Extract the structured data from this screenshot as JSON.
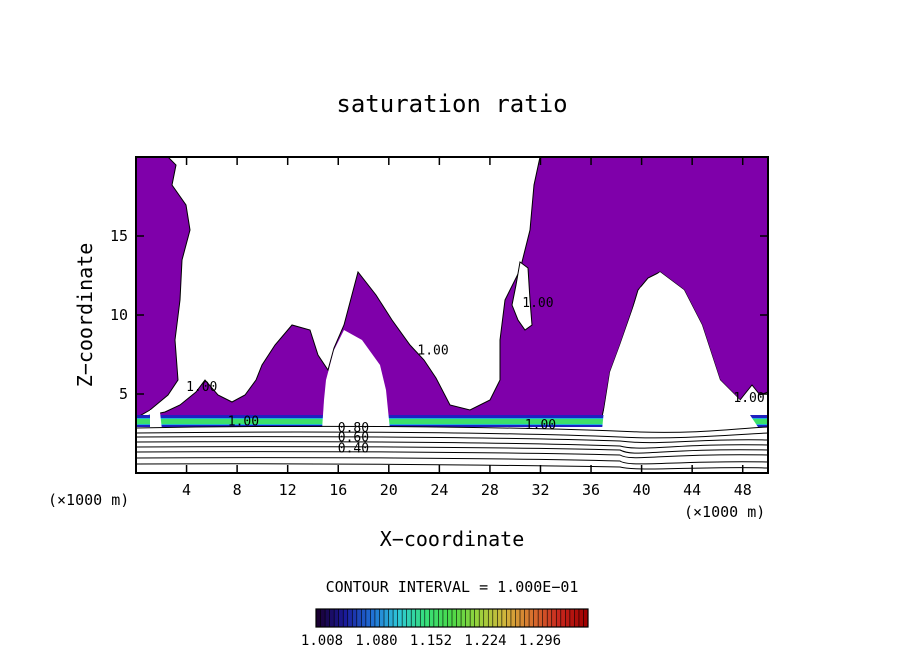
{
  "chart_data": {
    "type": "contour",
    "title": "saturation ratio",
    "xlabel": "X−coordinate",
    "ylabel": "Z−coordinate",
    "x_units_label": "(×1000 m)",
    "x_units_label_right": "(×1000 m)",
    "xlim": [
      0,
      50
    ],
    "ylim": [
      0,
      20
    ],
    "x_ticks": [
      "4",
      "8",
      "12",
      "16",
      "20",
      "24",
      "28",
      "32",
      "36",
      "40",
      "44",
      "48"
    ],
    "y_ticks": [
      "5",
      "10",
      "15"
    ],
    "x_tick_values": [
      4,
      8,
      12,
      16,
      20,
      24,
      28,
      32,
      36,
      40,
      44,
      48
    ],
    "y_tick_values": [
      5,
      10,
      15
    ],
    "contour_interval_text": "CONTOUR INTERVAL = 1.000E−01",
    "contour_labels": [
      {
        "text": "1.00",
        "x": 8.5,
        "z": 3.0
      },
      {
        "text": "0.80",
        "x": 17.2,
        "z": 2.6
      },
      {
        "text": "0.60",
        "x": 17.2,
        "z": 2.0
      },
      {
        "text": "0.40",
        "x": 17.2,
        "z": 1.3
      },
      {
        "text": "1.00",
        "x": 32.0,
        "z": 2.8
      },
      {
        "text": "1.00",
        "x": 23.5,
        "z": 7.5
      },
      {
        "text": "1.00",
        "x": 31.8,
        "z": 10.5
      },
      {
        "text": "1.00",
        "x": 48.5,
        "z": 4.5
      },
      {
        "text": "1.00",
        "x": 5.2,
        "z": 5.2
      }
    ],
    "colorbar": {
      "tick_labels": [
        "1.008",
        "1.080",
        "1.152",
        "1.224",
        "1.296"
      ],
      "colors": [
        "#1a0033",
        "#1a1a99",
        "#1f6fd6",
        "#2ec8d8",
        "#36e07a",
        "#4cd948",
        "#9ad23c",
        "#d2b43c",
        "#d8702e",
        "#c8281e",
        "#a00000"
      ]
    },
    "fill_color": "#7f00aa",
    "band_colors": {
      "blue": "#2020c0",
      "cyan": "#1fb2d6",
      "green": "#3ce06a"
    }
  }
}
